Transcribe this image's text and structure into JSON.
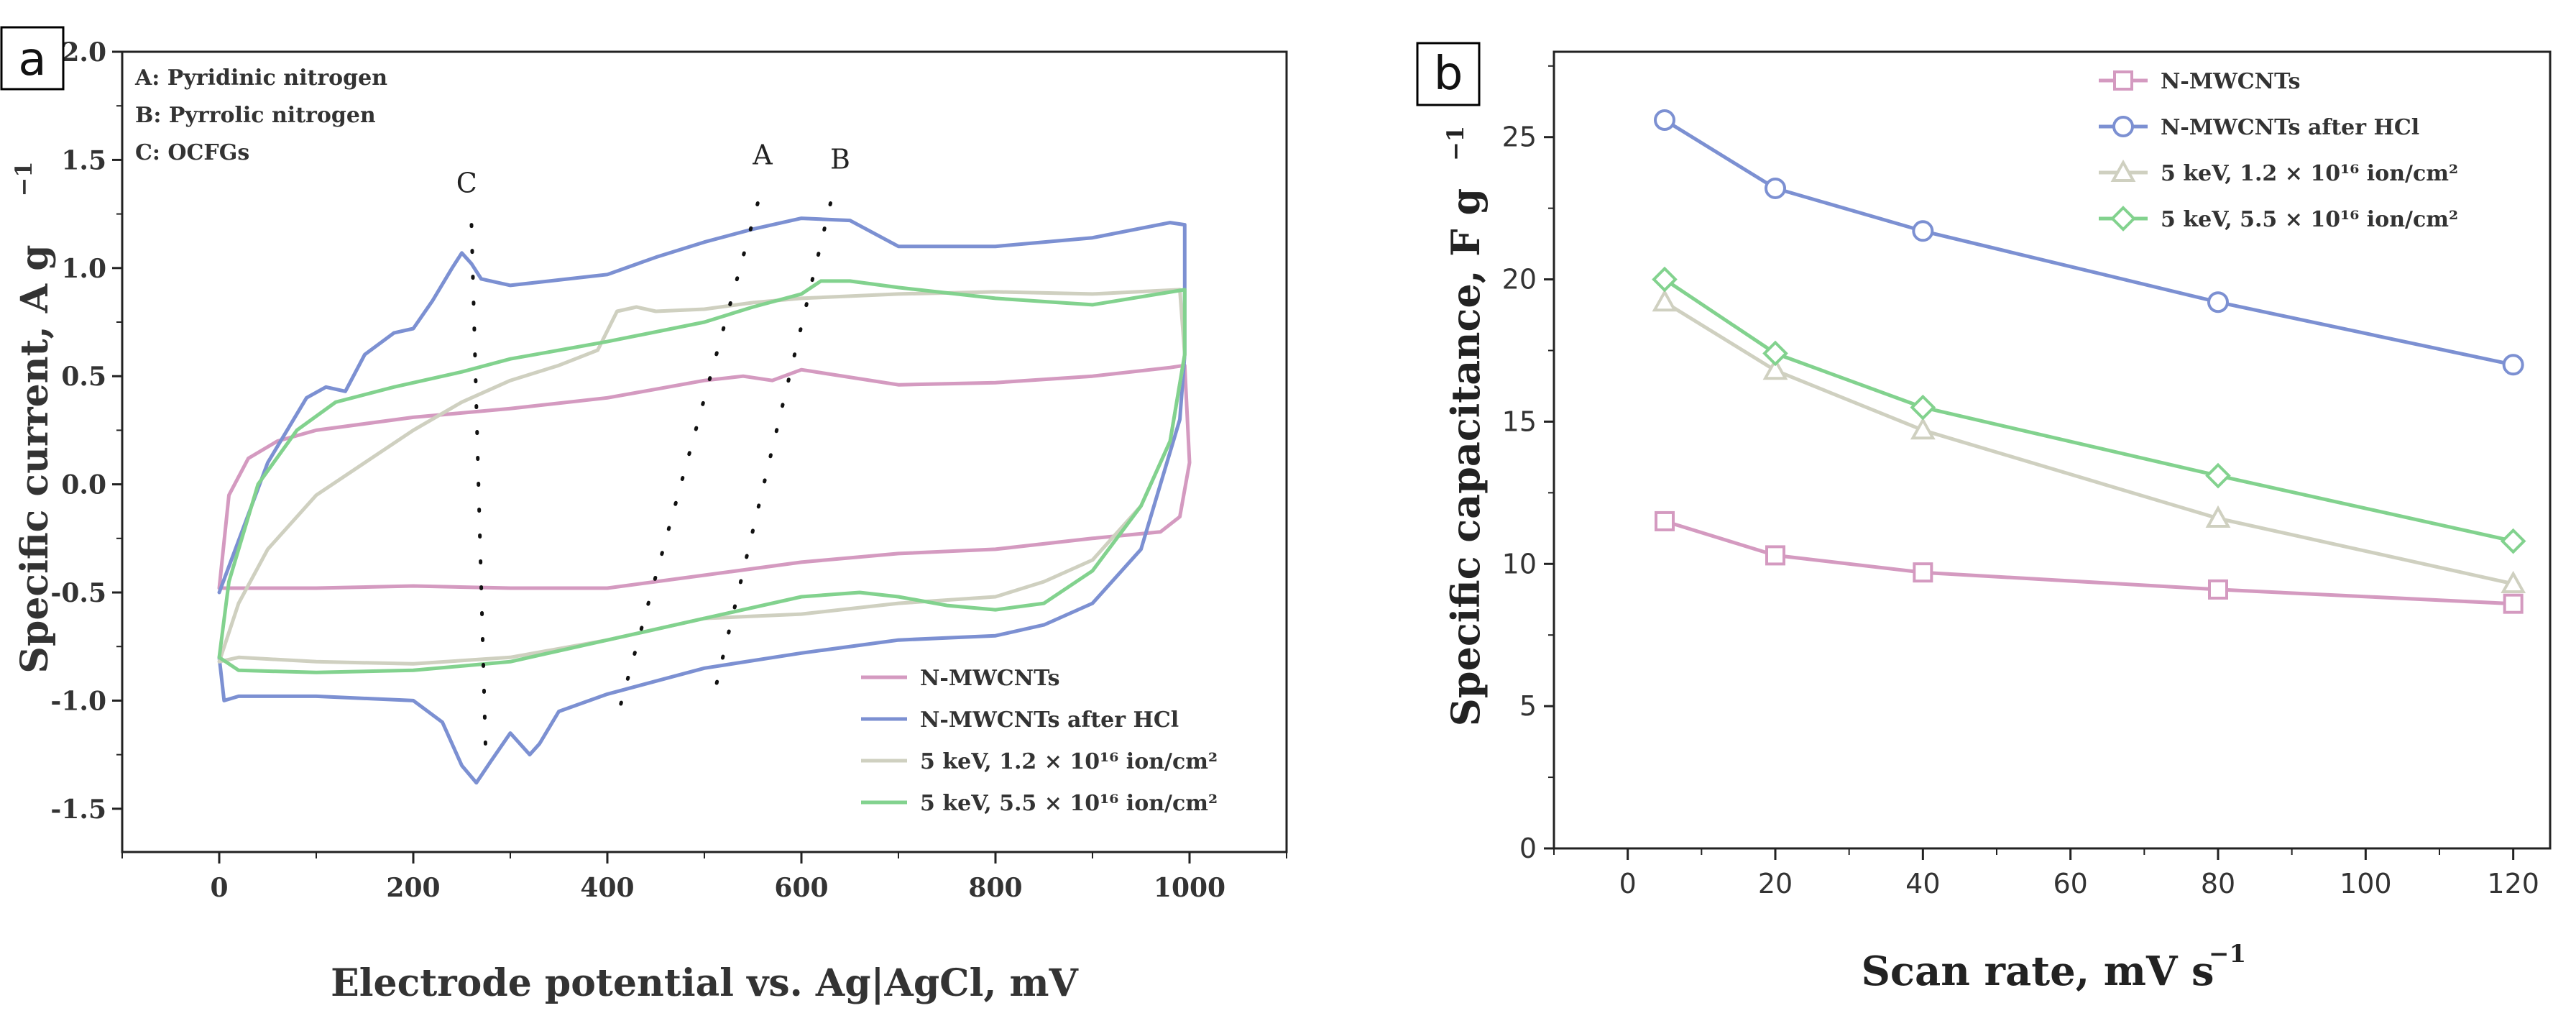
{
  "chart_data": [
    {
      "id": "a",
      "type": "line",
      "panel_label": "a",
      "xlabel": "Electrode potential vs. Ag|AgCl, mV",
      "ylabel": "Specific current, A g",
      "ylabel_sup": "−1",
      "xlim": [
        -100,
        1100
      ],
      "ylim": [
        -1.7,
        2.0
      ],
      "x_ticks": [
        0,
        200,
        400,
        600,
        800,
        1000
      ],
      "y_ticks": [
        2.0,
        1.5,
        1.0,
        0.5,
        0.0,
        -0.5,
        -1.0,
        -1.5
      ],
      "y_tick_labels": [
        "2.0",
        "1.5",
        "1.0",
        "0.5",
        "0.0",
        "-0.5",
        "-1.0",
        "-1.5"
      ],
      "peak_legend": [
        "A: Pyridinic nitrogen",
        "B: Pyrrolic nitrogen",
        "C: OCFGs"
      ],
      "peak_markers": [
        {
          "label": "C",
          "from": [
            260,
            1.2
          ],
          "to": [
            275,
            -1.3
          ]
        },
        {
          "label": "A",
          "from": [
            555,
            1.3
          ],
          "to": [
            410,
            -1.08
          ]
        },
        {
          "label": "B",
          "from": [
            630,
            1.3
          ],
          "to": [
            510,
            -0.97
          ]
        }
      ],
      "peak_label_points": {
        "C": [
          255,
          1.35
        ],
        "A": [
          560,
          1.48
        ],
        "B": [
          640,
          1.46
        ]
      },
      "series": [
        {
          "name": "N-MWCNTs",
          "color": "#d49ac0",
          "x": [
            0,
            10,
            30,
            60,
            100,
            200,
            300,
            400,
            450,
            500,
            540,
            570,
            600,
            700,
            800,
            900,
            980,
            995,
            1000,
            990,
            970,
            900,
            800,
            700,
            600,
            500,
            400,
            300,
            200,
            100,
            30,
            10,
            0,
            0
          ],
          "y": [
            -0.48,
            -0.05,
            0.12,
            0.2,
            0.25,
            0.31,
            0.35,
            0.4,
            0.44,
            0.48,
            0.5,
            0.48,
            0.53,
            0.46,
            0.47,
            0.5,
            0.54,
            0.55,
            0.1,
            -0.15,
            -0.22,
            -0.25,
            -0.3,
            -0.32,
            -0.36,
            -0.42,
            -0.48,
            -0.48,
            -0.47,
            -0.48,
            -0.48,
            -0.48,
            -0.48,
            -0.48
          ]
        },
        {
          "name": "N-MWCNTs after HCl",
          "color": "#7c90d2",
          "x": [
            0,
            10,
            50,
            90,
            110,
            130,
            150,
            180,
            200,
            220,
            240,
            250,
            260,
            270,
            300,
            400,
            450,
            500,
            550,
            600,
            650,
            700,
            800,
            900,
            980,
            995,
            995,
            990,
            970,
            950,
            900,
            850,
            800,
            700,
            600,
            500,
            400,
            350,
            330,
            320,
            300,
            280,
            265,
            250,
            230,
            200,
            100,
            20,
            5,
            0
          ],
          "y": [
            -0.5,
            -0.38,
            0.1,
            0.4,
            0.45,
            0.43,
            0.6,
            0.7,
            0.72,
            0.85,
            1.0,
            1.07,
            1.02,
            0.95,
            0.92,
            0.97,
            1.05,
            1.12,
            1.18,
            1.23,
            1.22,
            1.1,
            1.1,
            1.14,
            1.21,
            1.2,
            0.6,
            0.3,
            0.0,
            -0.3,
            -0.55,
            -0.65,
            -0.7,
            -0.72,
            -0.78,
            -0.85,
            -0.97,
            -1.05,
            -1.2,
            -1.25,
            -1.15,
            -1.28,
            -1.38,
            -1.3,
            -1.1,
            -1.0,
            -0.98,
            -0.98,
            -1.0,
            -0.8
          ]
        },
        {
          "name": "5 keV, 1.2 × 10¹⁶ ion/cm²",
          "color": "#cfd0c0",
          "x": [
            0,
            20,
            50,
            100,
            150,
            200,
            250,
            300,
            350,
            390,
            410,
            430,
            450,
            500,
            550,
            600,
            650,
            700,
            800,
            900,
            990,
            995,
            980,
            950,
            900,
            850,
            800,
            700,
            600,
            500,
            400,
            300,
            200,
            100,
            20,
            0
          ],
          "y": [
            -0.82,
            -0.55,
            -0.3,
            -0.05,
            0.1,
            0.25,
            0.38,
            0.48,
            0.55,
            0.62,
            0.8,
            0.82,
            0.8,
            0.81,
            0.84,
            0.86,
            0.87,
            0.88,
            0.89,
            0.88,
            0.9,
            0.6,
            0.2,
            -0.1,
            -0.35,
            -0.45,
            -0.52,
            -0.55,
            -0.6,
            -0.62,
            -0.72,
            -0.8,
            -0.83,
            -0.82,
            -0.8,
            -0.82
          ]
        },
        {
          "name": "5 keV, 5.5 × 10¹⁶ ion/cm²",
          "color": "#82d28e",
          "x": [
            0,
            10,
            40,
            80,
            120,
            180,
            250,
            300,
            400,
            500,
            550,
            600,
            620,
            650,
            700,
            800,
            900,
            995,
            995,
            980,
            950,
            900,
            850,
            800,
            750,
            700,
            660,
            600,
            500,
            400,
            300,
            200,
            100,
            20,
            0
          ],
          "y": [
            -0.8,
            -0.45,
            0.0,
            0.25,
            0.38,
            0.45,
            0.52,
            0.58,
            0.66,
            0.75,
            0.82,
            0.88,
            0.94,
            0.94,
            0.91,
            0.86,
            0.83,
            0.9,
            0.6,
            0.2,
            -0.1,
            -0.4,
            -0.55,
            -0.58,
            -0.56,
            -0.52,
            -0.5,
            -0.52,
            -0.62,
            -0.72,
            -0.82,
            -0.86,
            -0.87,
            -0.86,
            -0.8
          ]
        }
      ]
    },
    {
      "id": "b",
      "type": "line",
      "panel_label": "b",
      "xlabel": "Scan rate, mV s",
      "xlabel_sup": "−1",
      "ylabel": "Specific capacitance, F g",
      "ylabel_sup": "−1",
      "xlim": [
        -10,
        125
      ],
      "ylim": [
        0,
        28
      ],
      "x_ticks": [
        0,
        20,
        40,
        60,
        80,
        100,
        120
      ],
      "y_ticks": [
        0,
        5,
        10,
        15,
        20,
        25
      ],
      "categories": [
        5,
        20,
        40,
        80,
        120
      ],
      "series": [
        {
          "name": "N-MWCNTs",
          "color": "#d49ac0",
          "marker": "square",
          "values": [
            11.5,
            10.3,
            9.7,
            9.1,
            8.6
          ]
        },
        {
          "name": "N-MWCNTs after HCl",
          "color": "#7c90d2",
          "marker": "circle",
          "values": [
            25.6,
            23.2,
            21.7,
            19.2,
            17.0
          ]
        },
        {
          "name": "5 keV, 1.2 × 10¹⁶ ion/cm²",
          "color": "#cfd0c0",
          "marker": "triangle",
          "values": [
            19.2,
            16.8,
            14.7,
            11.6,
            9.3
          ]
        },
        {
          "name": "5 keV, 5.5 × 10¹⁶ ion/cm²",
          "color": "#82d28e",
          "marker": "diamond",
          "values": [
            20.0,
            17.4,
            15.5,
            13.1,
            10.8
          ]
        }
      ]
    }
  ]
}
